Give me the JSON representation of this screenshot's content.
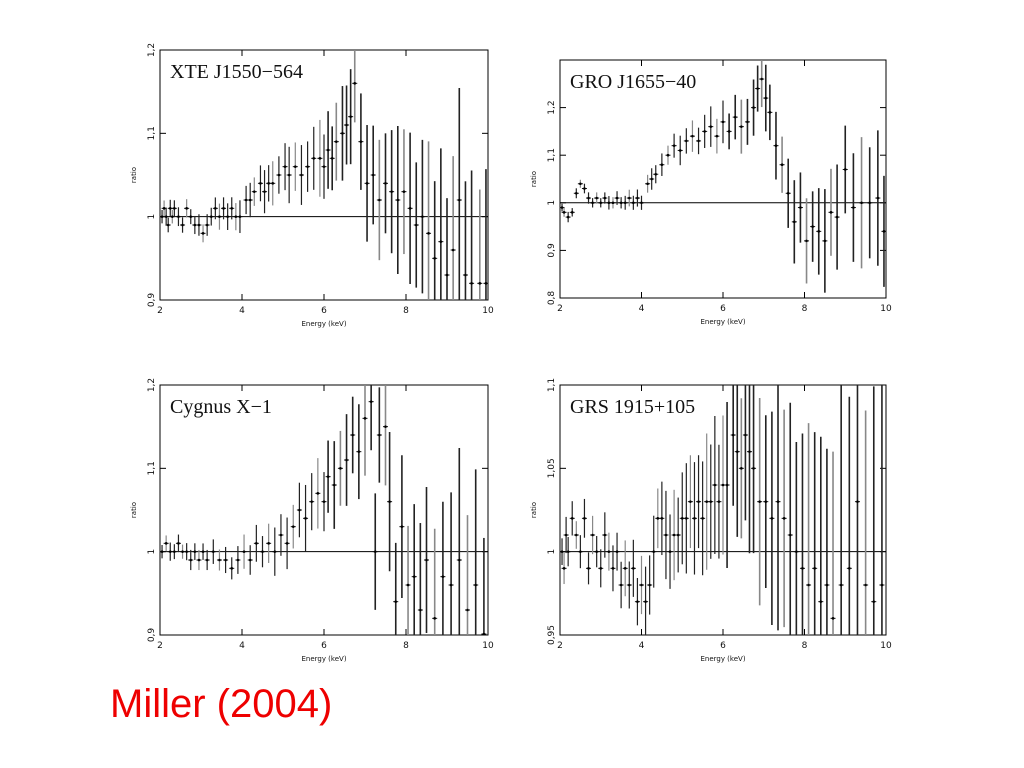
{
  "caption": {
    "text": "Miller (2004)",
    "color": "#ee0000"
  },
  "chart_data": [
    {
      "type": "scatter",
      "title": "XTE J1550−564",
      "xlabel": "Energy (keV)",
      "ylabel": "ratio",
      "xlim": [
        2,
        10
      ],
      "ylim": [
        0.9,
        1.2
      ],
      "xticks": [
        2,
        4,
        6,
        8,
        10
      ],
      "yticks": [
        0.9,
        1,
        1.1,
        1.2
      ],
      "ytick_labels": [
        "0,9",
        "1",
        "1,1",
        "1,2"
      ],
      "reference_line": 1.0,
      "series": [
        {
          "values": [
            [
              2.05,
              1.0
            ],
            [
              2.1,
              1.01
            ],
            [
              2.15,
              1.0
            ],
            [
              2.2,
              0.99
            ],
            [
              2.25,
              1.01
            ],
            [
              2.3,
              1.0
            ],
            [
              2.35,
              1.01
            ],
            [
              2.45,
              1.0
            ],
            [
              2.55,
              0.99
            ],
            [
              2.65,
              1.01
            ],
            [
              2.75,
              1.0
            ],
            [
              2.85,
              0.99
            ],
            [
              2.95,
              0.99
            ],
            [
              3.05,
              0.98
            ],
            [
              3.15,
              0.99
            ],
            [
              3.25,
              1.0
            ],
            [
              3.35,
              1.01
            ],
            [
              3.45,
              1.0
            ],
            [
              3.55,
              1.01
            ],
            [
              3.65,
              1.0
            ],
            [
              3.75,
              1.01
            ],
            [
              3.85,
              1.0
            ],
            [
              3.95,
              1.0
            ],
            [
              4.1,
              1.02
            ],
            [
              4.2,
              1.02
            ],
            [
              4.3,
              1.03
            ],
            [
              4.45,
              1.04
            ],
            [
              4.55,
              1.03
            ],
            [
              4.65,
              1.04
            ],
            [
              4.75,
              1.04
            ],
            [
              4.9,
              1.05
            ],
            [
              5.05,
              1.06
            ],
            [
              5.15,
              1.05
            ],
            [
              5.3,
              1.06
            ],
            [
              5.45,
              1.05
            ],
            [
              5.6,
              1.06
            ],
            [
              5.75,
              1.07
            ],
            [
              5.9,
              1.07
            ],
            [
              6.0,
              1.06
            ],
            [
              6.1,
              1.08
            ],
            [
              6.2,
              1.07
            ],
            [
              6.3,
              1.09
            ],
            [
              6.45,
              1.1
            ],
            [
              6.55,
              1.11
            ],
            [
              6.65,
              1.12
            ],
            [
              6.75,
              1.16
            ],
            [
              6.9,
              1.09
            ],
            [
              7.05,
              1.04
            ],
            [
              7.2,
              1.05
            ],
            [
              7.35,
              1.02
            ],
            [
              7.5,
              1.04
            ],
            [
              7.65,
              1.03
            ],
            [
              7.8,
              1.02
            ],
            [
              7.95,
              1.03
            ],
            [
              8.1,
              1.01
            ],
            [
              8.25,
              0.99
            ],
            [
              8.4,
              1.0
            ],
            [
              8.55,
              0.98
            ],
            [
              8.7,
              0.95
            ],
            [
              8.85,
              0.97
            ],
            [
              9.0,
              0.93
            ],
            [
              9.15,
              0.96
            ],
            [
              9.3,
              1.02
            ],
            [
              9.45,
              0.93
            ],
            [
              9.6,
              0.92
            ],
            [
              9.8,
              0.92
            ],
            [
              9.95,
              0.92
            ]
          ]
        }
      ]
    },
    {
      "type": "scatter",
      "title": "GRO J1655−40",
      "xlabel": "Energy (keV)",
      "ylabel": "ratio",
      "xlim": [
        2,
        10
      ],
      "ylim": [
        0.8,
        1.3
      ],
      "xticks": [
        2,
        4,
        6,
        8,
        10
      ],
      "yticks": [
        0.8,
        0.9,
        1,
        1.1,
        1.2
      ],
      "ytick_labels": [
        "0,8",
        "0,9",
        "1",
        "1,1",
        "1,2"
      ],
      "reference_line": 1.0,
      "series": [
        {
          "values": [
            [
              2.05,
              0.99
            ],
            [
              2.1,
              0.98
            ],
            [
              2.2,
              0.97
            ],
            [
              2.3,
              0.98
            ],
            [
              2.4,
              1.02
            ],
            [
              2.5,
              1.04
            ],
            [
              2.6,
              1.03
            ],
            [
              2.7,
              1.01
            ],
            [
              2.8,
              1.0
            ],
            [
              2.9,
              1.01
            ],
            [
              3.0,
              1.0
            ],
            [
              3.1,
              1.01
            ],
            [
              3.2,
              1.0
            ],
            [
              3.3,
              1.0
            ],
            [
              3.4,
              1.01
            ],
            [
              3.5,
              1.0
            ],
            [
              3.6,
              1.0
            ],
            [
              3.7,
              1.01
            ],
            [
              3.8,
              1.0
            ],
            [
              3.9,
              1.01
            ],
            [
              4.0,
              1.0
            ],
            [
              4.15,
              1.04
            ],
            [
              4.25,
              1.05
            ],
            [
              4.35,
              1.06
            ],
            [
              4.5,
              1.08
            ],
            [
              4.65,
              1.1
            ],
            [
              4.8,
              1.12
            ],
            [
              4.95,
              1.11
            ],
            [
              5.1,
              1.13
            ],
            [
              5.25,
              1.14
            ],
            [
              5.4,
              1.13
            ],
            [
              5.55,
              1.15
            ],
            [
              5.7,
              1.16
            ],
            [
              5.85,
              1.14
            ],
            [
              6.0,
              1.17
            ],
            [
              6.15,
              1.15
            ],
            [
              6.3,
              1.18
            ],
            [
              6.45,
              1.16
            ],
            [
              6.6,
              1.17
            ],
            [
              6.75,
              1.2
            ],
            [
              6.85,
              1.24
            ],
            [
              6.95,
              1.26
            ],
            [
              7.05,
              1.22
            ],
            [
              7.15,
              1.19
            ],
            [
              7.3,
              1.12
            ],
            [
              7.45,
              1.08
            ],
            [
              7.6,
              1.02
            ],
            [
              7.75,
              0.96
            ],
            [
              7.9,
              0.99
            ],
            [
              8.05,
              0.92
            ],
            [
              8.2,
              0.95
            ],
            [
              8.35,
              0.94
            ],
            [
              8.5,
              0.92
            ],
            [
              8.65,
              0.98
            ],
            [
              8.8,
              0.97
            ],
            [
              9.0,
              1.07
            ],
            [
              9.2,
              0.99
            ],
            [
              9.4,
              1.0
            ],
            [
              9.6,
              1.0
            ],
            [
              9.8,
              1.01
            ],
            [
              9.95,
              0.94
            ]
          ]
        }
      ]
    },
    {
      "type": "scatter",
      "title": "Cygnus X−1",
      "xlabel": "Energy (keV)",
      "ylabel": "ratio",
      "xlim": [
        2,
        10
      ],
      "ylim": [
        0.9,
        1.2
      ],
      "xticks": [
        2,
        4,
        6,
        8,
        10
      ],
      "yticks": [
        0.9,
        1,
        1.1,
        1.2
      ],
      "ytick_labels": [
        "0,9",
        "1",
        "1,1",
        "1,2"
      ],
      "reference_line": 1.0,
      "series": [
        {
          "values": [
            [
              2.05,
              1.0
            ],
            [
              2.15,
              1.01
            ],
            [
              2.25,
              1.0
            ],
            [
              2.35,
              1.0
            ],
            [
              2.45,
              1.01
            ],
            [
              2.55,
              1.0
            ],
            [
              2.65,
              1.0
            ],
            [
              2.75,
              0.99
            ],
            [
              2.85,
              1.0
            ],
            [
              2.95,
              0.99
            ],
            [
              3.05,
              1.0
            ],
            [
              3.15,
              0.99
            ],
            [
              3.3,
              1.0
            ],
            [
              3.45,
              0.99
            ],
            [
              3.6,
              0.99
            ],
            [
              3.75,
              0.98
            ],
            [
              3.9,
              0.99
            ],
            [
              4.05,
              1.0
            ],
            [
              4.2,
              0.99
            ],
            [
              4.35,
              1.01
            ],
            [
              4.5,
              1.0
            ],
            [
              4.65,
              1.01
            ],
            [
              4.8,
              1.0
            ],
            [
              4.95,
              1.02
            ],
            [
              5.1,
              1.01
            ],
            [
              5.25,
              1.03
            ],
            [
              5.4,
              1.05
            ],
            [
              5.55,
              1.04
            ],
            [
              5.7,
              1.06
            ],
            [
              5.85,
              1.07
            ],
            [
              6.0,
              1.06
            ],
            [
              6.1,
              1.09
            ],
            [
              6.25,
              1.08
            ],
            [
              6.4,
              1.1
            ],
            [
              6.55,
              1.11
            ],
            [
              6.7,
              1.14
            ],
            [
              6.85,
              1.12
            ],
            [
              7.0,
              1.16
            ],
            [
              7.15,
              1.18
            ],
            [
              7.25,
              1.0
            ],
            [
              7.35,
              1.14
            ],
            [
              7.5,
              1.15
            ],
            [
              7.6,
              1.06
            ],
            [
              7.75,
              0.94
            ],
            [
              7.9,
              1.03
            ],
            [
              8.05,
              0.96
            ],
            [
              8.2,
              0.97
            ],
            [
              8.35,
              0.93
            ],
            [
              8.5,
              0.99
            ],
            [
              8.7,
              0.92
            ],
            [
              8.9,
              0.97
            ],
            [
              9.1,
              0.96
            ],
            [
              9.3,
              0.99
            ],
            [
              9.5,
              0.93
            ],
            [
              9.7,
              0.96
            ],
            [
              9.9,
              0.9
            ]
          ]
        }
      ]
    },
    {
      "type": "scatter",
      "title": "GRS 1915+105",
      "xlabel": "Energy (keV)",
      "ylabel": "ratio",
      "xlim": [
        2,
        10
      ],
      "ylim": [
        0.95,
        1.1
      ],
      "xticks": [
        2,
        4,
        6,
        8,
        10
      ],
      "yticks": [
        0.95,
        1,
        1.05,
        1.1
      ],
      "ytick_labels": [
        "0,95",
        "1",
        "1,05",
        "1,1"
      ],
      "reference_line": 1.0,
      "series": [
        {
          "values": [
            [
              2.05,
              1.0
            ],
            [
              2.1,
              0.99
            ],
            [
              2.15,
              1.01
            ],
            [
              2.2,
              1.0
            ],
            [
              2.3,
              1.02
            ],
            [
              2.4,
              1.01
            ],
            [
              2.5,
              1.0
            ],
            [
              2.6,
              1.02
            ],
            [
              2.7,
              0.99
            ],
            [
              2.8,
              1.01
            ],
            [
              2.9,
              1.0
            ],
            [
              3.0,
              0.99
            ],
            [
              3.1,
              1.01
            ],
            [
              3.2,
              1.0
            ],
            [
              3.3,
              0.99
            ],
            [
              3.4,
              1.0
            ],
            [
              3.5,
              0.98
            ],
            [
              3.6,
              0.99
            ],
            [
              3.7,
              0.98
            ],
            [
              3.8,
              0.99
            ],
            [
              3.9,
              0.97
            ],
            [
              4.0,
              0.98
            ],
            [
              4.1,
              0.97
            ],
            [
              4.2,
              0.98
            ],
            [
              4.3,
              1.0
            ],
            [
              4.4,
              1.02
            ],
            [
              4.5,
              1.02
            ],
            [
              4.6,
              1.01
            ],
            [
              4.7,
              1.0
            ],
            [
              4.8,
              1.01
            ],
            [
              4.9,
              1.01
            ],
            [
              5.0,
              1.02
            ],
            [
              5.1,
              1.02
            ],
            [
              5.2,
              1.03
            ],
            [
              5.3,
              1.02
            ],
            [
              5.4,
              1.03
            ],
            [
              5.5,
              1.02
            ],
            [
              5.6,
              1.03
            ],
            [
              5.7,
              1.03
            ],
            [
              5.8,
              1.04
            ],
            [
              5.9,
              1.03
            ],
            [
              6.0,
              1.04
            ],
            [
              6.1,
              1.04
            ],
            [
              6.25,
              1.07
            ],
            [
              6.35,
              1.06
            ],
            [
              6.45,
              1.05
            ],
            [
              6.55,
              1.07
            ],
            [
              6.65,
              1.06
            ],
            [
              6.75,
              1.05
            ],
            [
              6.9,
              1.03
            ],
            [
              7.05,
              1.03
            ],
            [
              7.2,
              1.02
            ],
            [
              7.35,
              1.03
            ],
            [
              7.5,
              1.02
            ],
            [
              7.65,
              1.01
            ],
            [
              7.8,
              1.0
            ],
            [
              7.95,
              0.99
            ],
            [
              8.1,
              0.98
            ],
            [
              8.25,
              0.99
            ],
            [
              8.4,
              0.97
            ],
            [
              8.55,
              0.98
            ],
            [
              8.7,
              0.96
            ],
            [
              8.9,
              0.98
            ],
            [
              9.1,
              0.99
            ],
            [
              9.3,
              1.03
            ],
            [
              9.5,
              0.98
            ],
            [
              9.7,
              0.97
            ],
            [
              9.9,
              0.98
            ]
          ]
        }
      ]
    }
  ]
}
